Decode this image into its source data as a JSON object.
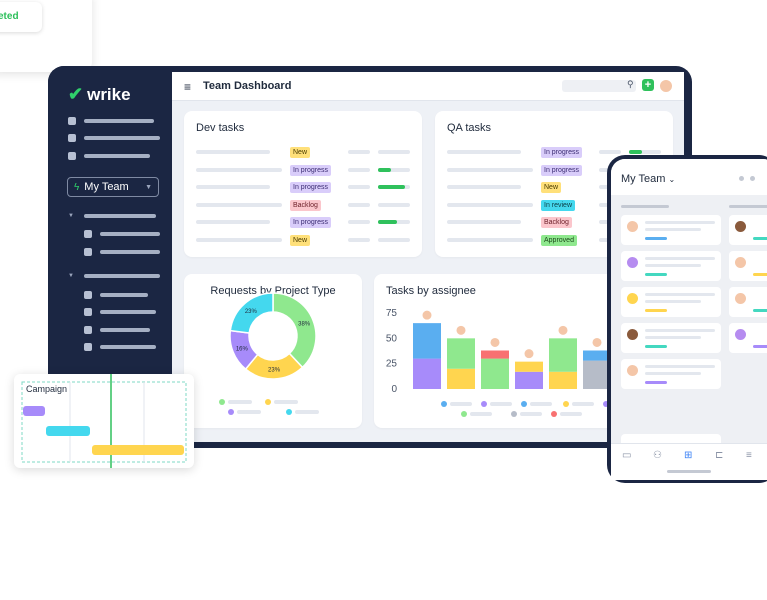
{
  "float_card": {
    "status_text": "eted",
    "status_color": "#2bbf5a"
  },
  "brand": {
    "name": "wrike",
    "accent": "#2fd06b"
  },
  "sidebar": {
    "team_selector": "My Team"
  },
  "header": {
    "title": "Team Dashboard"
  },
  "dev_tasks": {
    "title": "Dev tasks",
    "rows": [
      {
        "status": "New",
        "progress": 0
      },
      {
        "status": "In progress",
        "progress": 0.4
      },
      {
        "status": "In progress",
        "progress": 0.85
      },
      {
        "status": "Backlog",
        "progress": 0
      },
      {
        "status": "In progress",
        "progress": 0.6
      },
      {
        "status": "New",
        "progress": 0
      }
    ]
  },
  "qa_tasks": {
    "title": "QA tasks",
    "rows": [
      {
        "status": "In progress",
        "progress": 0.4
      },
      {
        "status": "In progress",
        "progress": 0
      },
      {
        "status": "New",
        "progress": 0
      },
      {
        "status": "In review",
        "progress": 0
      },
      {
        "status": "Backlog",
        "progress": 0
      },
      {
        "status": "Approved",
        "progress": 0
      }
    ]
  },
  "tag_colors": {
    "New": "t-new",
    "In progress": "t-prog",
    "Backlog": "t-back",
    "In review": "t-rev",
    "Approved": "t-app"
  },
  "donut_card": {
    "title": "Requests by Project Type"
  },
  "bar_card": {
    "title": "Tasks by assignee"
  },
  "gantt": {
    "label": "Campaign"
  },
  "phone": {
    "title": "My Team"
  },
  "chart_data": [
    {
      "type": "pie",
      "title": "Requests by Project Type",
      "slices": [
        {
          "label": "38%",
          "value": 38,
          "color": "#8fe88e"
        },
        {
          "label": "23%",
          "value": 23,
          "color": "#ffd54f"
        },
        {
          "label": "16%",
          "value": 16,
          "color": "#a78bfa"
        },
        {
          "label": "23%",
          "value": 23,
          "color": "#44d8ee"
        }
      ]
    },
    {
      "type": "bar",
      "title": "Tasks by assignee",
      "ylim": [
        0,
        75
      ],
      "yticks": [
        75,
        50,
        25,
        0
      ],
      "series_colors": [
        "#a78bfa",
        "#ffd54f",
        "#8fe88e",
        "#b6bcc8",
        "#f87171",
        "#5aaef0"
      ],
      "stacks": [
        [
          {
            "value": 30,
            "color": "#a78bfa"
          },
          {
            "value": 35,
            "color": "#5aaef0"
          }
        ],
        [
          {
            "value": 20,
            "color": "#ffd54f"
          },
          {
            "value": 30,
            "color": "#8fe88e"
          }
        ],
        [
          {
            "value": 30,
            "color": "#8fe88e"
          },
          {
            "value": 8,
            "color": "#f87171"
          }
        ],
        [
          {
            "value": 17,
            "color": "#a78bfa"
          },
          {
            "value": 10,
            "color": "#ffd54f"
          }
        ],
        [
          {
            "value": 17,
            "color": "#ffd54f"
          },
          {
            "value": 33,
            "color": "#8fe88e"
          }
        ],
        [
          {
            "value": 28,
            "color": "#b6bcc8"
          },
          {
            "value": 10,
            "color": "#5aaef0"
          }
        ]
      ]
    }
  ]
}
